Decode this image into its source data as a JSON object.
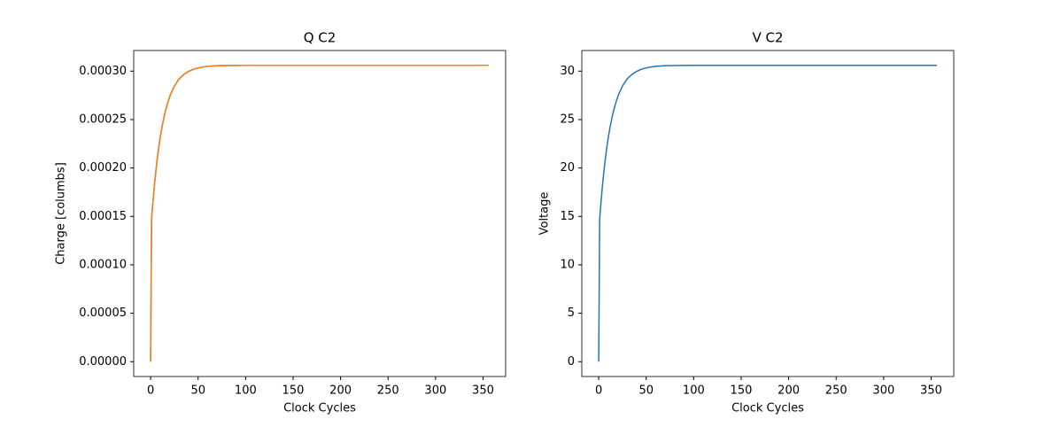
{
  "chart_data": [
    {
      "type": "line",
      "title": "Q C2",
      "xlabel": "Clock Cycles",
      "ylabel": "Charge [columbs]",
      "x": [
        0,
        1,
        2,
        4,
        6,
        8,
        10,
        12,
        15,
        18,
        21,
        25,
        30,
        35,
        40,
        45,
        50,
        55,
        60,
        65,
        70,
        100,
        150,
        200,
        250,
        300,
        356
      ],
      "series": [
        {
          "color": "#1f77b4",
          "values": [
            0,
            0.000147,
            0.0001597,
            0.0001822,
            0.0002012,
            0.0002173,
            0.000231,
            0.0002424,
            0.0002565,
            0.0002675,
            0.000276,
            0.0002845,
            0.000292,
            0.0002966,
            0.0002998,
            0.0003019,
            0.0003033,
            0.0003043,
            0.0003049,
            0.0003053,
            0.0003056,
            0.000306,
            0.000306,
            0.000306,
            0.000306,
            0.000306,
            0.000306
          ]
        },
        {
          "color": "#ff7f0e",
          "values": [
            0,
            0.000147,
            0.0001597,
            0.0001822,
            0.0002012,
            0.0002173,
            0.000231,
            0.0002424,
            0.0002565,
            0.0002675,
            0.000276,
            0.0002845,
            0.000292,
            0.0002966,
            0.0002998,
            0.0003019,
            0.0003033,
            0.0003043,
            0.0003049,
            0.0003053,
            0.0003056,
            0.000306,
            0.000306,
            0.000306,
            0.000306,
            0.000306,
            0.000306
          ]
        }
      ],
      "xlim": [
        -17.8,
        373.8
      ],
      "xticks": [
        0,
        50,
        100,
        150,
        200,
        250,
        300,
        350
      ],
      "ylim": [
        -1.53e-05,
        0.0003213
      ],
      "yticks": [
        {
          "value": 0,
          "label": "0.00000"
        },
        {
          "value": 5e-05,
          "label": "0.00005"
        },
        {
          "value": 0.0001,
          "label": "0.00010"
        },
        {
          "value": 0.00015,
          "label": "0.00015"
        },
        {
          "value": 0.0002,
          "label": "0.00020"
        },
        {
          "value": 0.00025,
          "label": "0.00025"
        },
        {
          "value": 0.0003,
          "label": "0.00030"
        }
      ]
    },
    {
      "type": "line",
      "title": "V C2",
      "xlabel": "Clock Cycles",
      "ylabel": "Voltage",
      "x": [
        0,
        1,
        2,
        4,
        6,
        8,
        10,
        12,
        15,
        18,
        21,
        25,
        30,
        35,
        40,
        45,
        50,
        55,
        60,
        65,
        70,
        100,
        150,
        200,
        250,
        300,
        356
      ],
      "series": [
        {
          "color": "#1f77b4",
          "values": [
            0,
            14.7,
            15.97,
            18.22,
            20.12,
            21.73,
            23.1,
            24.24,
            25.65,
            26.75,
            27.6,
            28.45,
            29.2,
            29.66,
            29.98,
            30.19,
            30.33,
            30.43,
            30.49,
            30.53,
            30.56,
            30.6,
            30.6,
            30.6,
            30.6,
            30.6,
            30.6
          ]
        }
      ],
      "xlim": [
        -17.8,
        373.8
      ],
      "xticks": [
        0,
        50,
        100,
        150,
        200,
        250,
        300,
        350
      ],
      "ylim": [
        -1.53,
        32.13
      ],
      "yticks": [
        0,
        5,
        10,
        15,
        20,
        25,
        30
      ]
    }
  ]
}
